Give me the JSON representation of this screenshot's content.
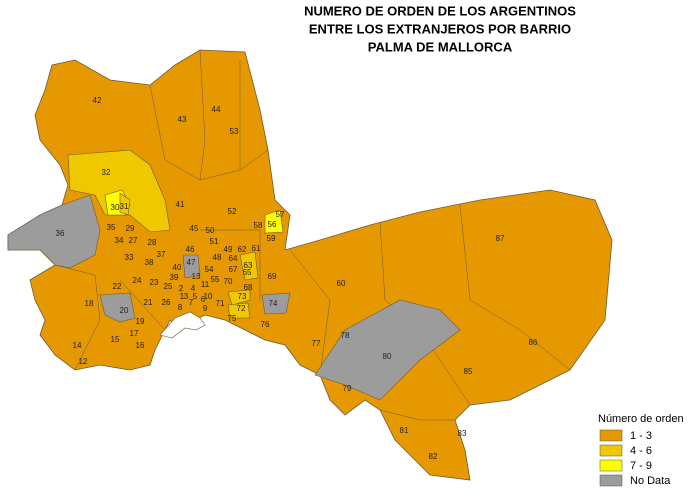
{
  "title": [
    "NUMERO DE ORDEN DE LOS ARGENTINOS",
    "ENTRE LOS EXTRANJEROS POR BARRIO",
    "PALMA DE MALLORCA"
  ],
  "legend": {
    "title": "Número de orden",
    "items": [
      {
        "label": "1 - 3",
        "color": "#e69800"
      },
      {
        "label": "4 - 6",
        "color": "#f0c800"
      },
      {
        "label": "7 - 9",
        "color": "#ffff00"
      },
      {
        "label": "No Data",
        "color": "#9c9c9c"
      }
    ]
  },
  "districts": [
    {
      "label": "42",
      "class": 0
    },
    {
      "label": "43",
      "class": 0
    },
    {
      "label": "44",
      "class": 0
    },
    {
      "label": "53",
      "class": 0
    },
    {
      "label": "32",
      "class": 1
    },
    {
      "label": "30",
      "class": 2
    },
    {
      "label": "31",
      "class": 1
    },
    {
      "label": "41",
      "class": 0
    },
    {
      "label": "52",
      "class": 0
    },
    {
      "label": "58",
      "class": 0
    },
    {
      "label": "57",
      "class": 0
    },
    {
      "label": "56",
      "class": 2
    },
    {
      "label": "36",
      "class": 3
    },
    {
      "label": "35",
      "class": 0
    },
    {
      "label": "29",
      "class": 0
    },
    {
      "label": "34",
      "class": 0
    },
    {
      "label": "27",
      "class": 0
    },
    {
      "label": "28",
      "class": 0
    },
    {
      "label": "45",
      "class": 0
    },
    {
      "label": "50",
      "class": 0
    },
    {
      "label": "51",
      "class": 0
    },
    {
      "label": "49",
      "class": 0
    },
    {
      "label": "62",
      "class": 0
    },
    {
      "label": "61",
      "class": 0
    },
    {
      "label": "59",
      "class": 0
    },
    {
      "label": "37",
      "class": 0
    },
    {
      "label": "46",
      "class": 0
    },
    {
      "label": "48",
      "class": 0
    },
    {
      "label": "64",
      "class": 0
    },
    {
      "label": "33",
      "class": 0
    },
    {
      "label": "38",
      "class": 0
    },
    {
      "label": "40",
      "class": 0
    },
    {
      "label": "47",
      "class": 3
    },
    {
      "label": "54",
      "class": 0
    },
    {
      "label": "67",
      "class": 0
    },
    {
      "label": "63",
      "class": 0
    },
    {
      "label": "65",
      "class": 1
    },
    {
      "label": "69",
      "class": 0
    },
    {
      "label": "60",
      "class": 0
    },
    {
      "label": "87",
      "class": 0
    },
    {
      "label": "18",
      "class": 0
    },
    {
      "label": "22",
      "class": 0
    },
    {
      "label": "24",
      "class": 0
    },
    {
      "label": "23",
      "class": 0
    },
    {
      "label": "39",
      "class": 0
    },
    {
      "label": "13",
      "class": 0
    },
    {
      "label": "11",
      "class": 0
    },
    {
      "label": "25",
      "class": 0
    },
    {
      "label": "2",
      "class": 0
    },
    {
      "label": "4",
      "class": 0
    },
    {
      "label": "55",
      "class": 0
    },
    {
      "label": "70",
      "class": 0
    },
    {
      "label": "68",
      "class": 0
    },
    {
      "label": "1",
      "class": 0
    },
    {
      "label": "3",
      "class": 0
    },
    {
      "label": "5",
      "class": 0
    },
    {
      "label": "6",
      "class": 0
    },
    {
      "label": "10",
      "class": 0
    },
    {
      "label": "71",
      "class": 0
    },
    {
      "label": "73",
      "class": 1
    },
    {
      "label": "74",
      "class": 3
    },
    {
      "label": "21",
      "class": 0
    },
    {
      "label": "26",
      "class": 0
    },
    {
      "label": "20",
      "class": 3
    },
    {
      "label": "7",
      "class": 0
    },
    {
      "label": "8",
      "class": 0
    },
    {
      "label": "9",
      "class": 0
    },
    {
      "label": "72",
      "class": 1
    },
    {
      "label": "75",
      "class": 0
    },
    {
      "label": "76",
      "class": 0
    },
    {
      "label": "19",
      "class": 0
    },
    {
      "label": "17",
      "class": 0
    },
    {
      "label": "16",
      "class": 0
    },
    {
      "label": "15",
      "class": 0
    },
    {
      "label": "14",
      "class": 0
    },
    {
      "label": "12",
      "class": 0
    },
    {
      "label": "78",
      "class": 0
    },
    {
      "label": "77",
      "class": 0
    },
    {
      "label": "80",
      "class": 3
    },
    {
      "label": "86",
      "class": 0
    },
    {
      "label": "85",
      "class": 0
    },
    {
      "label": "79",
      "class": 0
    },
    {
      "label": "81",
      "class": 0
    },
    {
      "label": "83",
      "class": 0
    },
    {
      "label": "82",
      "class": 0
    }
  ]
}
